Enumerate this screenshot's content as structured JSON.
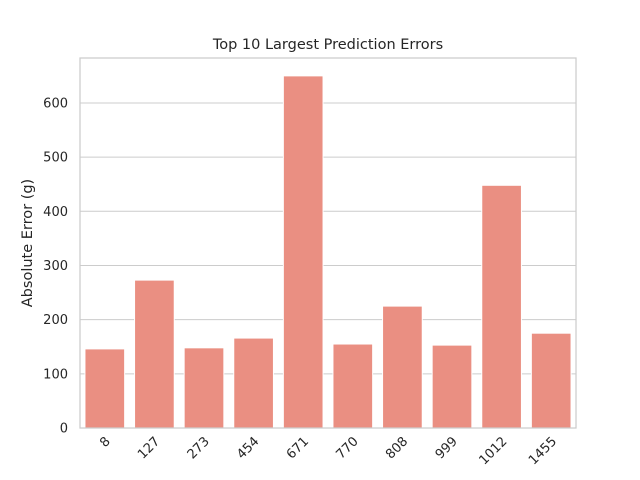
{
  "chart_data": {
    "type": "bar",
    "title": "Top 10 Largest Prediction Errors",
    "xlabel": "",
    "ylabel": "Absolute Error (g)",
    "categories": [
      "8",
      "127",
      "273",
      "454",
      "671",
      "770",
      "808",
      "999",
      "1012",
      "1455"
    ],
    "values": [
      146,
      273,
      148,
      166,
      650,
      155,
      225,
      153,
      448,
      175
    ],
    "ylim": [
      0,
      683
    ],
    "yticks": [
      0,
      100,
      200,
      300,
      400,
      500,
      600
    ],
    "grid": true,
    "bar_color": "#ea8f82"
  }
}
